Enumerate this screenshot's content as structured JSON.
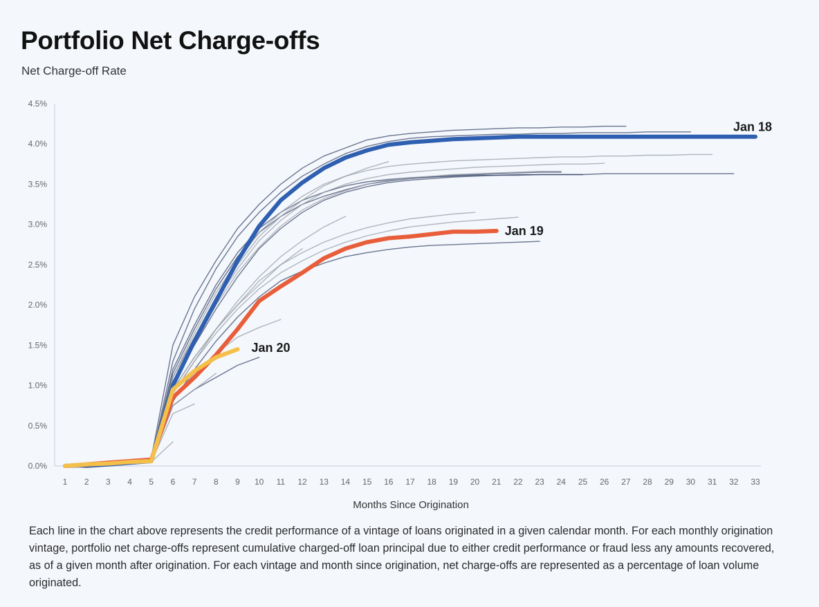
{
  "header": {
    "title": "Portfolio Net Charge-offs",
    "subtitle": "Net Charge-off Rate"
  },
  "caption": "Each line in the chart above represents the credit performance of a vintage of loans originated in a given calendar month. For each monthly origination vintage, portfolio net charge-offs represent cumulative charged-off loan principal due to either credit performance or fraud less any amounts recovered, as of a given month after origination. For each vintage and month since origination, net charge-offs are represented as a percentage of loan volume originated.",
  "chart_data": {
    "type": "line",
    "title": "Portfolio Net Charge-offs",
    "subtitle": "Net Charge-off Rate",
    "xlabel": "Months Since Origination",
    "ylabel": "",
    "xlim": [
      1,
      33
    ],
    "ylim": [
      0,
      4.5
    ],
    "x_ticks": [
      1,
      2,
      3,
      4,
      5,
      6,
      7,
      8,
      9,
      10,
      11,
      12,
      13,
      14,
      15,
      16,
      17,
      18,
      19,
      20,
      21,
      22,
      23,
      24,
      25,
      26,
      27,
      28,
      29,
      30,
      31,
      32,
      33
    ],
    "y_ticks": [
      "0.0%",
      "0.5%",
      "1.0%",
      "1.5%",
      "2.0%",
      "2.5%",
      "3.0%",
      "3.5%",
      "4.0%",
      "4.5%"
    ],
    "y_tick_values": [
      0,
      0.5,
      1.0,
      1.5,
      2.0,
      2.5,
      3.0,
      3.5,
      4.0,
      4.5
    ],
    "grid": false,
    "colors": {
      "highlight_jan18": "#2f5fb0",
      "highlight_jan19": "#e85d3a",
      "highlight_jan20": "#f5c04a",
      "background_navy": "#3b4a6b",
      "background_gray": "#9a9fa8"
    },
    "highlighted_series": [
      {
        "name": "Jan 18",
        "color": "#2f5fb0",
        "x": [
          1,
          2,
          3,
          4,
          5,
          6,
          7,
          8,
          9,
          10,
          11,
          12,
          13,
          14,
          15,
          16,
          17,
          18,
          19,
          20,
          21,
          22,
          23,
          24,
          25,
          26,
          27,
          28,
          29,
          30,
          31,
          32,
          33
        ],
        "y": [
          0,
          0.01,
          0.02,
          0.04,
          0.06,
          1.0,
          1.55,
          2.05,
          2.55,
          2.98,
          3.3,
          3.52,
          3.7,
          3.83,
          3.92,
          3.99,
          4.02,
          4.04,
          4.06,
          4.07,
          4.08,
          4.09,
          4.09,
          4.09,
          4.09,
          4.09,
          4.09,
          4.09,
          4.09,
          4.09,
          4.09,
          4.09,
          4.09
        ]
      },
      {
        "name": "Jan 19",
        "color": "#e85d3a",
        "x": [
          1,
          2,
          3,
          4,
          5,
          6,
          7,
          8,
          9,
          10,
          11,
          12,
          13,
          14,
          15,
          16,
          17,
          18,
          19,
          20,
          21
        ],
        "y": [
          0,
          0.02,
          0.04,
          0.06,
          0.08,
          0.85,
          1.1,
          1.38,
          1.7,
          2.05,
          2.23,
          2.4,
          2.58,
          2.7,
          2.78,
          2.83,
          2.85,
          2.88,
          2.91,
          2.91,
          2.92
        ]
      },
      {
        "name": "Jan 20",
        "color": "#f5c04a",
        "x": [
          1,
          2,
          3,
          4,
          5,
          6,
          7,
          8,
          9
        ],
        "y": [
          0,
          0.02,
          0.03,
          0.05,
          0.06,
          0.95,
          1.18,
          1.35,
          1.45
        ]
      }
    ],
    "background_series": [
      {
        "color": "#3b4a6b",
        "x": [
          1,
          2,
          3,
          4,
          5,
          6,
          7,
          8,
          9,
          10,
          11,
          12,
          13,
          14,
          15,
          16,
          17,
          18,
          19,
          20,
          21,
          22,
          23,
          24,
          25,
          26,
          27
        ],
        "y": [
          0,
          0.01,
          0.03,
          0.05,
          0.1,
          1.5,
          2.1,
          2.55,
          2.95,
          3.25,
          3.5,
          3.7,
          3.85,
          3.95,
          4.05,
          4.1,
          4.13,
          4.15,
          4.17,
          4.18,
          4.19,
          4.2,
          4.2,
          4.21,
          4.21,
          4.22,
          4.22
        ]
      },
      {
        "color": "#3b4a6b",
        "x": [
          1,
          2,
          3,
          4,
          5,
          6,
          7,
          8,
          9,
          10,
          11,
          12,
          13,
          14,
          15,
          16,
          17,
          18,
          19,
          20,
          21,
          22,
          23,
          24,
          25,
          26,
          27,
          28,
          29,
          30
        ],
        "y": [
          0,
          0.01,
          0.02,
          0.04,
          0.08,
          1.3,
          1.95,
          2.45,
          2.85,
          3.15,
          3.4,
          3.6,
          3.75,
          3.88,
          3.97,
          4.03,
          4.07,
          4.09,
          4.1,
          4.11,
          4.12,
          4.12,
          4.13,
          4.13,
          4.14,
          4.14,
          4.14,
          4.15,
          4.15,
          4.15
        ]
      },
      {
        "color": "#3b4a6b",
        "x": [
          1,
          2,
          3,
          4,
          5,
          6,
          7,
          8,
          9,
          10,
          11,
          12,
          13,
          14,
          15,
          16,
          17,
          18,
          19,
          20,
          21,
          22,
          23,
          24,
          25,
          26,
          27,
          28,
          29,
          30,
          31,
          32
        ],
        "y": [
          0,
          0.01,
          0.02,
          0.03,
          0.05,
          1.05,
          1.5,
          1.95,
          2.35,
          2.7,
          2.95,
          3.15,
          3.3,
          3.4,
          3.47,
          3.52,
          3.55,
          3.57,
          3.59,
          3.6,
          3.61,
          3.61,
          3.62,
          3.62,
          3.62,
          3.63,
          3.63,
          3.63,
          3.63,
          3.63,
          3.63,
          3.63
        ]
      },
      {
        "color": "#3b4a6b",
        "x": [
          1,
          2,
          3,
          4,
          5,
          6,
          7,
          8,
          9,
          10,
          11,
          12,
          13,
          14,
          15,
          16,
          17,
          18,
          19,
          20,
          21,
          22,
          23,
          24,
          25
        ],
        "y": [
          0,
          0.01,
          0.02,
          0.04,
          0.07,
          1.2,
          1.75,
          2.25,
          2.65,
          2.95,
          3.15,
          3.3,
          3.4,
          3.48,
          3.53,
          3.56,
          3.58,
          3.59,
          3.6,
          3.61,
          3.61,
          3.62,
          3.62,
          3.62,
          3.62
        ]
      },
      {
        "color": "#3b4a6b",
        "x": [
          1,
          2,
          3,
          4,
          5,
          6,
          7,
          8,
          9,
          10,
          11,
          12,
          13,
          14,
          15,
          16,
          17,
          18,
          19,
          20,
          21,
          22,
          23
        ],
        "y": [
          0,
          0.01,
          0.02,
          0.03,
          0.05,
          0.8,
          1.2,
          1.55,
          1.85,
          2.1,
          2.3,
          2.42,
          2.52,
          2.6,
          2.65,
          2.69,
          2.72,
          2.74,
          2.75,
          2.76,
          2.77,
          2.78,
          2.79
        ]
      },
      {
        "color": "#3b4a6b",
        "x": [
          1,
          2,
          3,
          4,
          5,
          6,
          7,
          8,
          9,
          10
        ],
        "y": [
          0,
          -0.02,
          0,
          0.02,
          0.05,
          0.75,
          0.95,
          1.1,
          1.25,
          1.35
        ]
      },
      {
        "color": "#3b4a6b",
        "x": [
          1,
          2,
          3,
          4,
          5,
          6,
          7,
          8,
          9,
          10,
          11,
          12,
          13,
          14,
          15,
          16,
          17,
          18,
          19,
          20,
          21,
          22,
          23,
          24
        ],
        "y": [
          0,
          0.01,
          0.02,
          0.04,
          0.06,
          1.15,
          1.7,
          2.2,
          2.6,
          2.9,
          3.1,
          3.25,
          3.35,
          3.43,
          3.5,
          3.54,
          3.57,
          3.59,
          3.61,
          3.62,
          3.63,
          3.64,
          3.65,
          3.65
        ]
      },
      {
        "color": "#9a9fa8",
        "x": [
          1,
          2,
          3,
          4,
          5,
          6,
          7,
          8,
          9,
          10,
          11,
          12,
          13,
          14,
          15,
          16,
          17,
          18,
          19,
          20,
          21,
          22,
          23,
          24,
          25,
          26,
          27,
          28,
          29,
          30,
          31
        ],
        "y": [
          0,
          0.01,
          0.02,
          0.04,
          0.07,
          1.1,
          1.65,
          2.15,
          2.55,
          2.9,
          3.15,
          3.35,
          3.5,
          3.6,
          3.67,
          3.72,
          3.75,
          3.77,
          3.79,
          3.8,
          3.81,
          3.82,
          3.83,
          3.84,
          3.84,
          3.85,
          3.85,
          3.86,
          3.86,
          3.87,
          3.87
        ]
      },
      {
        "color": "#9a9fa8",
        "x": [
          1,
          2,
          3,
          4,
          5,
          6,
          7,
          8,
          9,
          10,
          11,
          12,
          13,
          14,
          15,
          16,
          17,
          18,
          19,
          20,
          21,
          22,
          23,
          24,
          25,
          26
        ],
        "y": [
          0,
          0.01,
          0.02,
          0.04,
          0.06,
          1.1,
          1.6,
          2.05,
          2.45,
          2.8,
          3.05,
          3.25,
          3.4,
          3.5,
          3.57,
          3.62,
          3.65,
          3.67,
          3.69,
          3.71,
          3.72,
          3.73,
          3.74,
          3.75,
          3.75,
          3.76
        ]
      },
      {
        "color": "#9a9fa8",
        "x": [
          1,
          2,
          3,
          4,
          5,
          6,
          7,
          8,
          9,
          10,
          11,
          12,
          13,
          14,
          15,
          16,
          17,
          18,
          19,
          20,
          21,
          22,
          23,
          24
        ],
        "y": [
          0,
          0.01,
          0.02,
          0.04,
          0.06,
          1.05,
          1.55,
          2.0,
          2.4,
          2.72,
          2.98,
          3.18,
          3.32,
          3.42,
          3.5,
          3.55,
          3.58,
          3.6,
          3.62,
          3.63,
          3.64,
          3.65,
          3.66,
          3.66
        ]
      },
      {
        "color": "#9a9fa8",
        "x": [
          1,
          2,
          3,
          4,
          5,
          6,
          7,
          8,
          9,
          10,
          11,
          12,
          13,
          14,
          15,
          16
        ],
        "y": [
          0,
          0.01,
          0.02,
          0.04,
          0.06,
          1.1,
          1.6,
          2.1,
          2.5,
          2.85,
          3.1,
          3.3,
          3.48,
          3.6,
          3.7,
          3.78
        ]
      },
      {
        "color": "#9a9fa8",
        "x": [
          1,
          2,
          3,
          4,
          5,
          6,
          7,
          8,
          9,
          10,
          11,
          12,
          13,
          14
        ],
        "y": [
          0,
          0.01,
          0.02,
          0.03,
          0.05,
          0.9,
          1.3,
          1.7,
          2.05,
          2.35,
          2.6,
          2.8,
          2.97,
          3.1
        ]
      },
      {
        "color": "#9a9fa8",
        "x": [
          1,
          2,
          3,
          4,
          5,
          6,
          7,
          8,
          9,
          10,
          11,
          12,
          13,
          14,
          15,
          16,
          17,
          18,
          19,
          20
        ],
        "y": [
          0,
          0.01,
          0.02,
          0.04,
          0.06,
          0.95,
          1.35,
          1.7,
          2.0,
          2.3,
          2.5,
          2.65,
          2.78,
          2.88,
          2.96,
          3.02,
          3.07,
          3.1,
          3.13,
          3.15
        ]
      },
      {
        "color": "#9a9fa8",
        "x": [
          1,
          2,
          3,
          4,
          5,
          6,
          7,
          8,
          9,
          10,
          11,
          12,
          13,
          14,
          15,
          16,
          17,
          18,
          19,
          20,
          21,
          22
        ],
        "y": [
          0,
          0.01,
          0.02,
          0.04,
          0.06,
          0.9,
          1.3,
          1.65,
          1.95,
          2.2,
          2.4,
          2.55,
          2.68,
          2.78,
          2.86,
          2.92,
          2.97,
          3.0,
          3.03,
          3.05,
          3.07,
          3.09
        ]
      },
      {
        "color": "#9a9fa8",
        "x": [
          1,
          2,
          3,
          4,
          5,
          6,
          7,
          8,
          9,
          10,
          11,
          12
        ],
        "y": [
          0,
          0.01,
          0.02,
          0.03,
          0.05,
          0.95,
          1.35,
          1.7,
          2.0,
          2.25,
          2.5,
          2.7
        ]
      },
      {
        "color": "#9a9fa8",
        "x": [
          1,
          2,
          3,
          4,
          5,
          6,
          7,
          8,
          9,
          10,
          11
        ],
        "y": [
          0,
          0.01,
          0.02,
          0.03,
          0.05,
          0.85,
          1.15,
          1.4,
          1.6,
          1.72,
          1.82
        ]
      },
      {
        "color": "#9a9fa8",
        "x": [
          1,
          2,
          3,
          4,
          5,
          6,
          7,
          8
        ],
        "y": [
          0,
          0.01,
          0.02,
          0.03,
          0.05,
          0.75,
          0.95,
          1.15
        ]
      },
      {
        "color": "#9a9fa8",
        "x": [
          1,
          2,
          3,
          4,
          5,
          6,
          7
        ],
        "y": [
          0,
          0.01,
          0.02,
          0.03,
          0.05,
          0.65,
          0.77
        ]
      },
      {
        "color": "#9a9fa8",
        "x": [
          1,
          2,
          3,
          4,
          5,
          6
        ],
        "y": [
          0,
          0.01,
          0.02,
          0.03,
          0.05,
          0.3
        ]
      }
    ]
  }
}
